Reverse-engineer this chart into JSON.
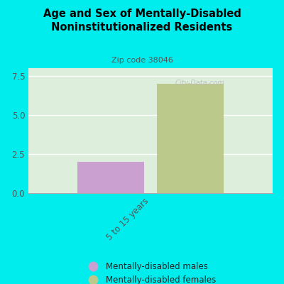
{
  "title": "Age and Sex of Mentally-Disabled\nNoninstitutionalized Residents",
  "subtitle": "Zip code 38046",
  "categories": [
    "5 to 15 years"
  ],
  "male_values": [
    2.0
  ],
  "female_values": [
    7.0
  ],
  "male_color": "#c9a0d0",
  "female_color": "#bbc98a",
  "background_color": "#00eded",
  "plot_bg_color": "#ddeedd",
  "ylim": [
    0,
    8.0
  ],
  "yticks": [
    0,
    2.5,
    5,
    7.5
  ],
  "legend_male": "Mentally-disabled males",
  "legend_female": "Mentally-disabled females",
  "watermark": "City-Data.com"
}
